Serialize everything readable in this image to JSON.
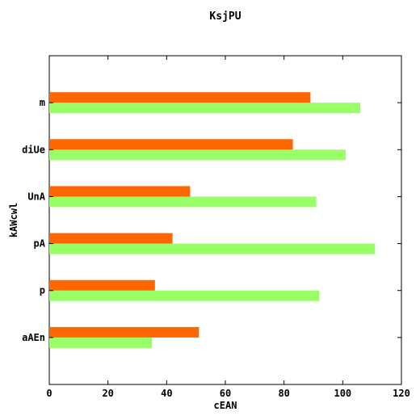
{
  "chart_data": {
    "type": "bar",
    "orientation": "horizontal",
    "title": "KsjPU",
    "xlabel": "cEAN",
    "ylabel": "kAWcwl",
    "categories": [
      "aAEn",
      "p",
      "pA",
      "UnA",
      "diUe",
      "m"
    ],
    "series": [
      {
        "color": "#99ff66",
        "values": [
          35,
          92,
          111,
          91,
          101,
          106
        ]
      },
      {
        "color": "#ff6600",
        "values": [
          51,
          36,
          42,
          48,
          83,
          89
        ]
      }
    ],
    "xlim": [
      0,
      120
    ],
    "xticks": [
      0,
      20,
      40,
      60,
      80,
      100,
      120
    ],
    "grid": false,
    "legend": "none"
  }
}
